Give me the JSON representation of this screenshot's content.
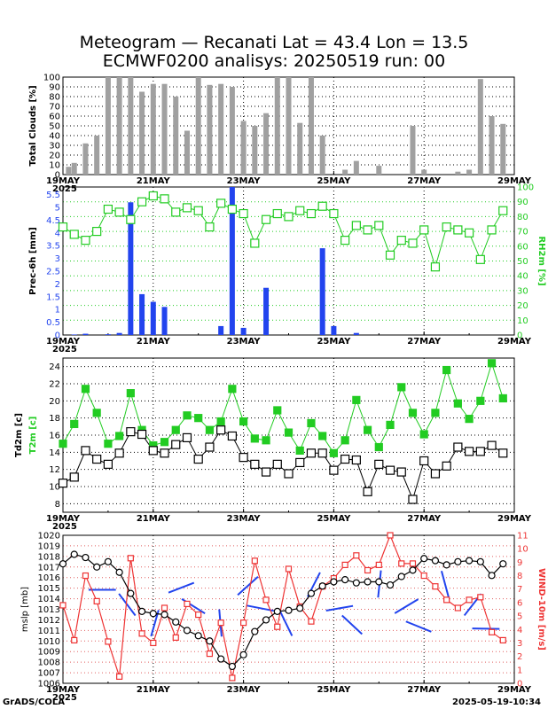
{
  "header": {
    "title_line1": "Meteogram — Recanati Lat = 43.4 Lon = 13.5",
    "title_line2": "ECMWF0200 analisys: 20250519 run: 00"
  },
  "footer": {
    "left": "GrADS/COLA",
    "right": "2025-05-19-10:34"
  },
  "colors": {
    "clouds": "#a0a0a0",
    "precip": "#2244ee",
    "rh": "#22cc22",
    "t2m": "#22cc22",
    "td2m": "#000000",
    "mslp": "#000000",
    "wind": "#ee3333",
    "barbs": "#2244ee"
  },
  "chart_data": [
    {
      "type": "bar",
      "ylabel": "Total Clouds [%]",
      "ylim": [
        0,
        100
      ],
      "x": [
        0.125,
        0.25,
        0.5,
        0.75,
        1,
        1.25,
        1.5,
        1.75,
        2,
        2.25,
        2.5,
        2.75,
        3,
        3.25,
        3.5,
        3.75,
        4,
        4.25,
        4.5,
        4.75,
        5,
        5.25,
        5.5,
        5.75,
        6,
        6.25,
        6.5,
        6.75,
        7,
        7.25,
        7.5,
        7.75,
        8,
        8.25,
        8.5,
        8.75,
        9,
        9.25,
        9.5,
        9.75
      ],
      "values": [
        8,
        12,
        32,
        40,
        100,
        100,
        100,
        85,
        93,
        93,
        80,
        45,
        100,
        92,
        93,
        90,
        55,
        50,
        63,
        100,
        100,
        53,
        100,
        40,
        0,
        5,
        14,
        0,
        9,
        0,
        0,
        50,
        5,
        0,
        0,
        3,
        5,
        98,
        60,
        52
      ],
      "x_ticks": [
        "19MAY",
        "21MAY",
        "23MAY",
        "25MAY",
        "27MAY",
        "29MAY"
      ],
      "x_year": "2025",
      "y_ticks": [
        "0",
        "10",
        "20",
        "30",
        "40",
        "50",
        "60",
        "70",
        "80",
        "90",
        "100"
      ]
    },
    {
      "type": "bar",
      "ylabel": "Prec-6h [mm]",
      "y2label": "RH2m [%]",
      "ylim": [
        0,
        5.8
      ],
      "y2lim": [
        0,
        100
      ],
      "precip_x": [
        0.25,
        0.5,
        1,
        1.25,
        1.5,
        1.75,
        2,
        2.25,
        3.5,
        3.75,
        4,
        4.5,
        5.75,
        6,
        6.5
      ],
      "precip": [
        0.02,
        0.05,
        0.03,
        0.08,
        5.2,
        1.6,
        1.3,
        1.1,
        0.35,
        5.8,
        0.28,
        1.85,
        3.4,
        0.35,
        0.08
      ],
      "rh_x": [
        0,
        0.25,
        0.5,
        0.75,
        1,
        1.25,
        1.5,
        1.75,
        2,
        2.25,
        2.5,
        2.75,
        3,
        3.25,
        3.5,
        3.75,
        4,
        4.25,
        4.5,
        4.75,
        5,
        5.25,
        5.5,
        5.75,
        6,
        6.25,
        6.5,
        6.75,
        7,
        7.25,
        7.5,
        7.75,
        8,
        8.25,
        8.5,
        8.75,
        9,
        9.25,
        9.5,
        9.75
      ],
      "rh": [
        73,
        68,
        64,
        70,
        85,
        83,
        78,
        90,
        94,
        92,
        83,
        86,
        84,
        73,
        89,
        85,
        82,
        62,
        78,
        82,
        80,
        84,
        82,
        87,
        82,
        64,
        74,
        71,
        74,
        54,
        64,
        62,
        71,
        46,
        73,
        71,
        69,
        51,
        71,
        84
      ],
      "x_ticks": [
        "19MAY",
        "21MAY",
        "23MAY",
        "25MAY",
        "27MAY",
        "29MAY"
      ],
      "x_year": "2025",
      "y_ticks": [
        "0",
        "0.5",
        "1",
        "1.5",
        "2",
        "2.5",
        "3",
        "3.5",
        "4",
        "4.5",
        "5",
        "5.5"
      ],
      "y2_ticks": [
        "0",
        "10",
        "20",
        "30",
        "40",
        "50",
        "60",
        "70",
        "80",
        "90",
        "100"
      ]
    },
    {
      "type": "line",
      "ylabel": "Td2m [c]",
      "ylabel_green": "T2m [c]",
      "ylim": [
        7,
        25
      ],
      "x": [
        0,
        0.25,
        0.5,
        0.75,
        1,
        1.25,
        1.5,
        1.75,
        2,
        2.25,
        2.5,
        2.75,
        3,
        3.25,
        3.5,
        3.75,
        4,
        4.25,
        4.5,
        4.75,
        5,
        5.25,
        5.5,
        5.75,
        6,
        6.25,
        6.5,
        6.75,
        7,
        7.25,
        7.5,
        7.75,
        8,
        8.25,
        8.5,
        8.75,
        9,
        9.25,
        9.5,
        9.75
      ],
      "t2m": [
        15,
        17.3,
        21.4,
        18.6,
        15,
        15.9,
        20.9,
        16.6,
        14.8,
        15.2,
        16.6,
        18.3,
        18,
        16.6,
        17.6,
        21.4,
        17.6,
        15.6,
        15.4,
        18.9,
        16.3,
        14.2,
        17.4,
        15.9,
        13.9,
        15.4,
        20.1,
        16.6,
        14.6,
        17.2,
        21.6,
        18.6,
        16.1,
        18.6,
        23.6,
        19.7,
        17.9,
        20,
        24.4,
        20.3
      ],
      "td2m": [
        10.4,
        11.1,
        14.2,
        13.2,
        12.6,
        13.9,
        16.4,
        16.1,
        14.2,
        13.9,
        14.9,
        15.7,
        13.2,
        14.6,
        16.6,
        15.9,
        13.4,
        12.6,
        11.7,
        12.6,
        11.5,
        12.8,
        13.9,
        13.9,
        11.9,
        13.2,
        13.1,
        9.4,
        12.6,
        11.9,
        11.7,
        8.5,
        13,
        11.5,
        12.4,
        14.6,
        14.1,
        14.1,
        14.8,
        13.9
      ],
      "x_ticks": [
        "19MAY",
        "21MAY",
        "23MAY",
        "25MAY",
        "27MAY",
        "29MAY"
      ],
      "x_year": "2025",
      "y_ticks": [
        "8",
        "10",
        "12",
        "14",
        "16",
        "18",
        "20",
        "22",
        "24"
      ]
    },
    {
      "type": "line",
      "ylabel": "mslp [mb]",
      "y2label": "WIND-10m [m/s]",
      "ylim": [
        1006,
        1020
      ],
      "y2lim": [
        0,
        11
      ],
      "x": [
        0,
        0.25,
        0.5,
        0.75,
        1,
        1.25,
        1.5,
        1.75,
        2,
        2.25,
        2.5,
        2.75,
        3,
        3.25,
        3.5,
        3.75,
        4,
        4.25,
        4.5,
        4.75,
        5,
        5.25,
        5.5,
        5.75,
        6,
        6.25,
        6.5,
        6.75,
        7,
        7.25,
        7.5,
        7.75,
        8,
        8.25,
        8.5,
        8.75,
        9,
        9.25,
        9.5,
        9.75
      ],
      "mslp": [
        1017.3,
        1018.2,
        1017.9,
        1017,
        1017.5,
        1016.5,
        1014.5,
        1012.8,
        1012.6,
        1012.5,
        1011.8,
        1011,
        1010.5,
        1010,
        1008.3,
        1007.6,
        1008.7,
        1010.9,
        1012,
        1012.8,
        1012.9,
        1013.1,
        1014.5,
        1015.2,
        1015.6,
        1015.8,
        1015.5,
        1015.6,
        1015.6,
        1015.3,
        1016.1,
        1016.7,
        1017.8,
        1017.6,
        1017.2,
        1017.5,
        1017.6,
        1017.5,
        1016.2,
        1017.3
      ],
      "wind": [
        5.8,
        3.2,
        8,
        6.1,
        3.1,
        0.5,
        9.3,
        3.7,
        3,
        5.6,
        3.4,
        5.9,
        5.1,
        2.2,
        4.5,
        0.4,
        4.5,
        9.1,
        6.2,
        4.2,
        8.5,
        5.7,
        4.6,
        7.2,
        7.8,
        8.8,
        9.5,
        8.4,
        8.8,
        11,
        8.9,
        8.9,
        8,
        7.2,
        6.2,
        5.6,
        6.2,
        6.4,
        3.8,
        3.2
      ],
      "barbs_x": [
        1,
        1.5,
        2,
        2.5,
        3,
        3.5,
        4,
        4.5,
        5,
        5.5,
        6,
        6.5,
        7,
        7.5,
        8,
        8.5,
        9,
        9.5
      ],
      "x_ticks": [
        "19MAY",
        "21MAY",
        "23MAY",
        "25MAY",
        "27MAY",
        "29MAY"
      ],
      "x_year": "2025",
      "y_ticks": [
        "1006",
        "1007",
        "1008",
        "1009",
        "1010",
        "1011",
        "1012",
        "1013",
        "1014",
        "1015",
        "1016",
        "1017",
        "1018",
        "1019",
        "1020"
      ],
      "y2_ticks": [
        "0",
        "1",
        "2",
        "3",
        "4",
        "5",
        "6",
        "7",
        "8",
        "9",
        "10",
        "11"
      ]
    }
  ]
}
